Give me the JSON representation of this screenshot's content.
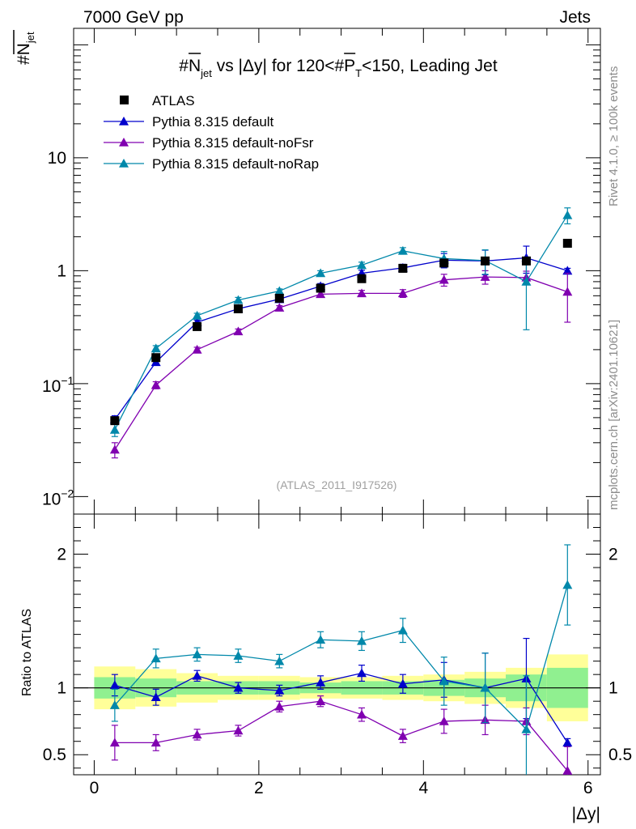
{
  "header": {
    "left": "7000 GeV pp",
    "right": "Jets",
    "ylabel_top": "#N_jet",
    "ylabel_ratio": "Ratio to ATLAS",
    "xlabel": "|Δy|",
    "side_rivet": "Rivet 4.1.0, ≥ 100k events",
    "side_mcplots": "mcplots.cern.ch [arXiv:2401.10621]",
    "analysis_id": "(ATLAS_2011_I917526)"
  },
  "chart_data": {
    "type": "scatter",
    "title": "#N_jet vs |Δy| for 120<#P_T<150, Leading Jet",
    "title_parts": {
      "pre": "#",
      "n": "N",
      "n_sub": "jet",
      "mid": " vs |Δy| for 120<#",
      "p": "P",
      "p_sub": "T",
      "post": "<150, Leading Jet"
    },
    "xlabel": "|Δy|",
    "ylabel": "#N_jet",
    "xlim": [
      -0.25,
      6.15
    ],
    "ylim": [
      0.007,
      140
    ],
    "yscale": "log",
    "ratio_ylim": [
      0.35,
      2.3
    ],
    "x": [
      0.25,
      0.75,
      1.25,
      1.75,
      2.25,
      2.75,
      3.25,
      3.75,
      4.25,
      4.75,
      5.25,
      5.75
    ],
    "xticks": [
      "0",
      "2",
      "4",
      "6"
    ],
    "yticks": [
      {
        "value": 0.01,
        "base": "10",
        "exp": "−2"
      },
      {
        "value": 0.1,
        "base": "10",
        "exp": "−1"
      },
      {
        "value": 1,
        "label": "1"
      },
      {
        "value": 10,
        "label": "10"
      }
    ],
    "ratio_yticks": [
      {
        "value": 0.5,
        "label": "0.5"
      },
      {
        "value": 1,
        "label": "1"
      },
      {
        "value": 2,
        "label": "2"
      }
    ],
    "reference": {
      "name": "ATLAS",
      "color": "#000000",
      "values": [
        0.047,
        0.17,
        0.32,
        0.46,
        0.57,
        0.7,
        0.85,
        1.05,
        1.17,
        1.22,
        1.22,
        1.75
      ],
      "band_inner": [
        0.08,
        0.07,
        0.05,
        0.05,
        0.05,
        0.04,
        0.05,
        0.05,
        0.06,
        0.07,
        0.1,
        0.15
      ],
      "band_outer": [
        0.16,
        0.14,
        0.11,
        0.09,
        0.09,
        0.08,
        0.08,
        0.09,
        0.1,
        0.12,
        0.15,
        0.25
      ]
    },
    "series": [
      {
        "name": "Pythia 8.315 default",
        "color": "#0000cc",
        "values": [
          0.048,
          0.155,
          0.35,
          0.46,
          0.56,
          0.73,
          0.95,
          1.06,
          1.24,
          1.22,
          1.3,
          1.0
        ],
        "errors": [
          0.004,
          0.009,
          0.015,
          0.02,
          0.03,
          0.04,
          0.06,
          0.08,
          0.18,
          0.3,
          0.35,
          0.05
        ],
        "ratio": [
          1.02,
          0.93,
          1.09,
          1.0,
          0.98,
          1.04,
          1.11,
          1.03,
          1.06,
          1.0,
          1.07,
          0.59
        ],
        "ratio_err": [
          0.08,
          0.06,
          0.04,
          0.04,
          0.04,
          0.05,
          0.06,
          0.07,
          0.13,
          0.26,
          0.3,
          0.03
        ]
      },
      {
        "name": "Pythia 8.315 default-noFsr",
        "color": "#8000b0",
        "values": [
          0.026,
          0.097,
          0.2,
          0.29,
          0.47,
          0.62,
          0.63,
          0.63,
          0.83,
          0.88,
          0.87,
          0.65
        ],
        "errors": [
          0.004,
          0.007,
          0.01,
          0.015,
          0.02,
          0.03,
          0.04,
          0.05,
          0.1,
          0.12,
          0.12,
          0.3
        ],
        "ratio": [
          0.59,
          0.59,
          0.65,
          0.68,
          0.86,
          0.9,
          0.8,
          0.64,
          0.75,
          0.76,
          0.75,
          0.38
        ],
        "ratio_err": [
          0.13,
          0.06,
          0.04,
          0.04,
          0.04,
          0.04,
          0.05,
          0.05,
          0.09,
          0.11,
          0.1,
          0.18
        ]
      },
      {
        "name": "Pythia 8.315 default-noRap",
        "color": "#0088aa",
        "values": [
          0.039,
          0.205,
          0.4,
          0.55,
          0.66,
          0.95,
          1.12,
          1.5,
          1.28,
          1.23,
          0.8,
          3.1
        ],
        "errors": [
          0.005,
          0.012,
          0.02,
          0.03,
          0.03,
          0.05,
          0.07,
          0.1,
          0.2,
          0.3,
          0.5,
          0.5
        ],
        "ratio": [
          0.87,
          1.22,
          1.25,
          1.24,
          1.2,
          1.36,
          1.35,
          1.43,
          1.05,
          1.0,
          0.69,
          1.77
        ],
        "ratio_err": [
          0.12,
          0.07,
          0.05,
          0.05,
          0.05,
          0.06,
          0.07,
          0.09,
          0.18,
          0.26,
          0.4,
          0.3
        ]
      }
    ]
  }
}
